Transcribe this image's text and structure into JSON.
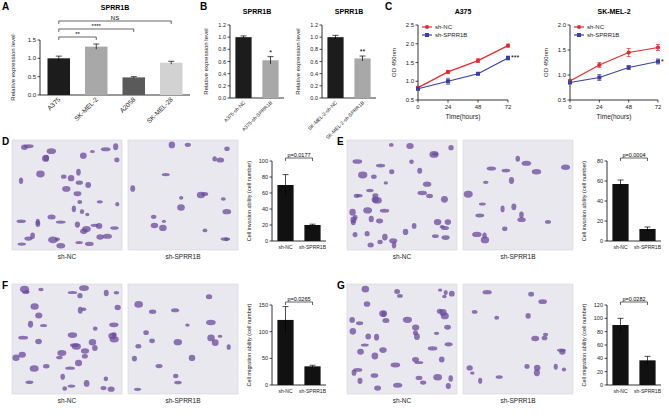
{
  "chart_data": [
    {
      "panel": "A",
      "type": "bar",
      "title": "SPRR1B",
      "y_label": "Relative expression level",
      "categories": [
        "A375",
        "SK-MEL-2",
        "A2058",
        "SK-MEL-28"
      ],
      "values": [
        1.0,
        1.32,
        0.48,
        0.88
      ],
      "errors": [
        0.06,
        0.07,
        0.02,
        0.04
      ],
      "colors": [
        "#1c1c1c",
        "#a8a8a8",
        "#5a5a5a",
        "#d2d2d2"
      ],
      "ylim": [
        0,
        1.5
      ],
      "yticks": [
        {
          "value": 0,
          "label": "0.0"
        },
        0.5,
        {
          "value": 1,
          "label": "1.0"
        },
        1.5
      ],
      "annotations": [
        {
          "text": "**",
          "categories": [
            "A375",
            "SK-MEL-2"
          ]
        },
        {
          "text": "****",
          "categories": [
            "A375",
            "A2058"
          ]
        },
        {
          "text": "NS",
          "categories": [
            "A375",
            "SK-MEL-28"
          ]
        }
      ]
    },
    {
      "panel": "B",
      "type": "bar",
      "title": "SPRR1B",
      "y_label": "Relative expression level",
      "categories": [
        "A375-sh-NC",
        "A375-sh-SPRR1B"
      ],
      "values": [
        1.0,
        0.62
      ],
      "errors": [
        0.02,
        0.06
      ],
      "colors": [
        "#1c1c1c",
        "#a8a8a8"
      ],
      "ylim": [
        0,
        1.2
      ],
      "yticks": [
        {
          "value": 0,
          "label": "0.0"
        },
        0.2,
        0.4,
        0.6,
        0.8,
        {
          "value": 1,
          "label": "1.0"
        },
        1.2
      ],
      "annotations": [
        {
          "text": "*",
          "categories": [
            "A375-sh-SPRR1B"
          ]
        }
      ]
    },
    {
      "type": "bar",
      "title": "SPRR1B",
      "y_label": "Relative expression level",
      "categories": [
        "SK-MEL-2-sh-NC",
        "SK-MEL-2-sh-SPRR1B"
      ],
      "values": [
        1.0,
        0.65
      ],
      "errors": [
        0.03,
        0.04
      ],
      "colors": [
        "#1c1c1c",
        "#a8a8a8"
      ],
      "ylim": [
        0,
        1.2
      ],
      "yticks": [
        {
          "value": 0,
          "label": "0.0"
        },
        0.2,
        0.4,
        0.6,
        0.8,
        {
          "value": 1,
          "label": "1.0"
        },
        1.2
      ],
      "annotations": [
        {
          "text": "**",
          "categories": [
            "SK-MEL-2-sh-SPRR1B"
          ]
        }
      ]
    },
    {
      "panel": "C",
      "type": "line",
      "title": "A375",
      "x_label": "Time(hours)",
      "y_label": "OD 450nm",
      "x": [
        0,
        24,
        48,
        72
      ],
      "xlim": [
        0,
        72
      ],
      "xticks": [
        0,
        24,
        48,
        72
      ],
      "ylim": [
        0.5,
        2.5
      ],
      "yticks": [
        0.5,
        {
          "value": 1,
          "label": "1.0"
        },
        1.5,
        {
          "value": 2,
          "label": "2.0"
        },
        2.5
      ],
      "legend": "upper left",
      "series": [
        {
          "name": "sh-NC",
          "color": "#e8282b",
          "marker": "circle",
          "values": [
            0.83,
            1.25,
            1.55,
            1.95
          ],
          "errors": [
            0.03,
            0.04,
            0.05,
            0.04
          ]
        },
        {
          "name": "sh-SPRR1B",
          "color": "#3a3fa8",
          "marker": "square",
          "values": [
            0.8,
            1.0,
            1.2,
            1.62
          ],
          "errors": [
            0.03,
            0.08,
            0.03,
            0.05
          ]
        }
      ],
      "annotations": [
        {
          "text": "***",
          "series": "sh-SPRR1B",
          "x": 72
        }
      ]
    },
    {
      "type": "line",
      "title": "SK-MEL-2",
      "x_label": "Time(hours)",
      "y_label": "OD 450nm",
      "x": [
        0,
        24,
        48,
        72
      ],
      "xlim": [
        0,
        72
      ],
      "xticks": [
        0,
        24,
        48,
        72
      ],
      "ylim": [
        0.5,
        2.0
      ],
      "yticks": [
        0.5,
        {
          "value": 1,
          "label": "1.0"
        },
        1.5,
        {
          "value": 2,
          "label": "2.0"
        }
      ],
      "legend": "upper left",
      "series": [
        {
          "name": "sh-NC",
          "color": "#e8282b",
          "marker": "circle",
          "values": [
            0.88,
            1.2,
            1.45,
            1.55
          ],
          "errors": [
            0.03,
            0.05,
            0.08,
            0.06
          ]
        },
        {
          "name": "sh-SPRR1B",
          "color": "#3a3fa8",
          "marker": "square",
          "values": [
            0.85,
            0.95,
            1.15,
            1.27
          ],
          "errors": [
            0.02,
            0.06,
            0.04,
            0.05
          ]
        }
      ],
      "annotations": [
        {
          "text": "*",
          "series": "sh-SPRR1B",
          "x": 72
        }
      ]
    },
    {
      "panel": "D",
      "type": "bar",
      "image_labels": [
        "sh-NC",
        "sh-SPRR1B"
      ],
      "y_label": "Cell invasion ability (cell number)",
      "categories": [
        "sh-NC",
        "sh-SPRR1B"
      ],
      "values": [
        70,
        20
      ],
      "errors": [
        13,
        1
      ],
      "color": "#111111",
      "ylim": [
        0,
        100
      ],
      "yticks": [
        0,
        20,
        40,
        60,
        80,
        100
      ],
      "annotations": [
        {
          "text": "p=0.0177",
          "categories": [
            "sh-NC",
            "sh-SPRR1B"
          ]
        }
      ]
    },
    {
      "panel": "E",
      "type": "bar",
      "image_labels": [
        "sh-NC",
        "sh-SPRR1B"
      ],
      "y_label": "Cell invasion ability (cell number)",
      "categories": [
        "sh-NC",
        "sh-SPRR1B"
      ],
      "values": [
        57,
        12
      ],
      "errors": [
        4,
        2
      ],
      "color": "#111111",
      "ylim": [
        0,
        80
      ],
      "yticks": [
        0,
        20,
        40,
        60,
        80
      ],
      "annotations": [
        {
          "text": "p=0.0004",
          "categories": [
            "sh-NC",
            "sh-SPRR1B"
          ]
        }
      ]
    },
    {
      "panel": "F",
      "type": "bar",
      "image_labels": [
        "sh-NC",
        "sh-SPRR1B"
      ],
      "y_label": "Cell migration ability (cell number)",
      "categories": [
        "sh-NC",
        "sh-SPRR1B"
      ],
      "values": [
        122,
        35
      ],
      "errors": [
        25,
        2
      ],
      "color": "#111111",
      "ylim": [
        0,
        150
      ],
      "yticks": [
        0,
        50,
        100,
        150
      ],
      "annotations": [
        {
          "text": "p=0.0265",
          "categories": [
            "sh-NC",
            "sh-SPRR1B"
          ]
        }
      ]
    },
    {
      "panel": "G",
      "type": "bar",
      "image_labels": [
        "sh-NC",
        "sh-SPRR1B"
      ],
      "y_label": "Cell migration ability (cell number)",
      "categories": [
        "sh-NC",
        "sh-SPRR1B"
      ],
      "values": [
        90,
        37
      ],
      "errors": [
        10,
        6
      ],
      "color": "#111111",
      "ylim": [
        0,
        120
      ],
      "yticks": [
        0,
        20,
        40,
        60,
        80,
        100,
        120
      ],
      "annotations": [
        {
          "text": "p=0.0282",
          "categories": [
            "sh-NC",
            "sh-SPRR1B"
          ]
        }
      ]
    }
  ]
}
